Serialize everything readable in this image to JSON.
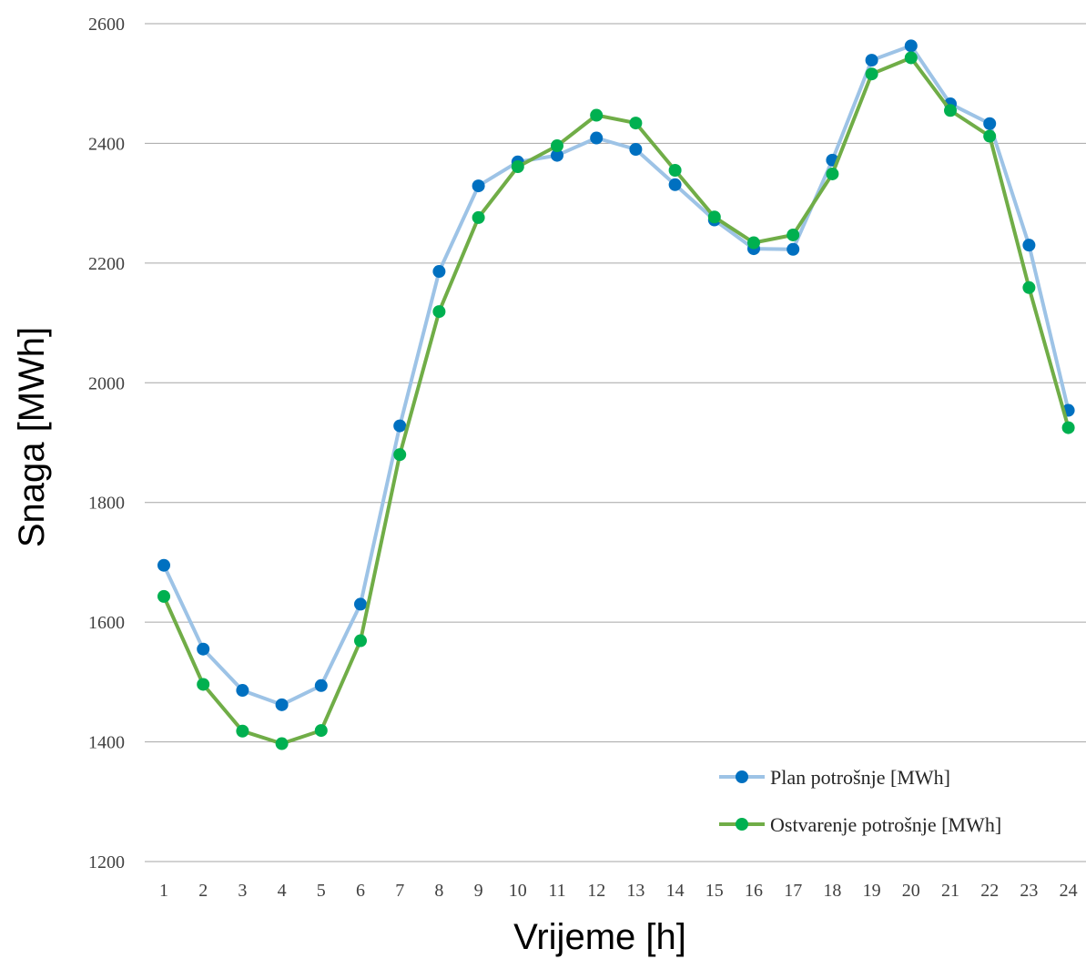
{
  "chart_data": {
    "type": "line",
    "title": "",
    "xlabel": "Vrijeme [h]",
    "ylabel": "Snaga [MWh]",
    "ylim": [
      1200,
      2600
    ],
    "yticks": [
      "1200",
      "1400",
      "1600",
      "1800",
      "2000",
      "2200",
      "2400",
      "2600"
    ],
    "categories": [
      "1",
      "2",
      "3",
      "4",
      "5",
      "6",
      "7",
      "8",
      "9",
      "10",
      "11",
      "12",
      "13",
      "14",
      "15",
      "16",
      "17",
      "18",
      "19",
      "20",
      "21",
      "22",
      "23",
      "24"
    ],
    "grid": "horizontal",
    "legend_position": "bottom-right",
    "series": [
      {
        "name": "Plan potrošnje [MWh]",
        "line_color": "#9dc3e6",
        "marker_color": "#0070c0",
        "values": [
          1695,
          1555,
          1486,
          1462,
          1494,
          1630,
          1928,
          2186,
          2329,
          2369,
          2380,
          2409,
          2390,
          2331,
          2272,
          2224,
          2223,
          2372,
          2539,
          2563,
          2466,
          2433,
          2230,
          1954
        ]
      },
      {
        "name": "Ostvarenje potrošnje [MWh]",
        "line_color": "#70ad47",
        "marker_color": "#00b050",
        "values": [
          1643,
          1496,
          1418,
          1397,
          1419,
          1569,
          1880,
          2119,
          2276,
          2361,
          2396,
          2447,
          2434,
          2355,
          2277,
          2234,
          2247,
          2349,
          2516,
          2543,
          2455,
          2412,
          2159,
          1925
        ]
      }
    ]
  }
}
